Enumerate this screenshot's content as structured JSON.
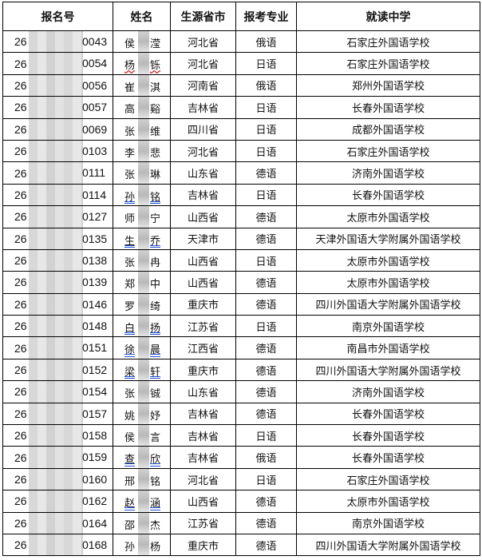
{
  "headers": [
    "报名号",
    "姓名",
    "生源省市",
    "报考专业",
    "就读中学"
  ],
  "rows": [
    {
      "id_prefix": "26",
      "id_suffix": "0043",
      "surname": "侯",
      "name_end": "滢",
      "province": "河北省",
      "major": "俄语",
      "school": "石家庄外国语学校",
      "underline": ""
    },
    {
      "id_prefix": "26",
      "id_suffix": "0054",
      "surname": "杨",
      "name_end": "铄",
      "province": "河北省",
      "major": "日语",
      "school": "石家庄外国语学校",
      "underline": "red"
    },
    {
      "id_prefix": "26",
      "id_suffix": "0056",
      "surname": "崔",
      "name_end": "淇",
      "province": "河南省",
      "major": "俄语",
      "school": "郑州外国语学校",
      "underline": ""
    },
    {
      "id_prefix": "26",
      "id_suffix": "0057",
      "surname": "高",
      "name_end": "谿",
      "province": "吉林省",
      "major": "日语",
      "school": "长春外国语学校",
      "underline": ""
    },
    {
      "id_prefix": "26",
      "id_suffix": "0069",
      "surname": "张",
      "name_end": "维",
      "province": "四川省",
      "major": "日语",
      "school": "成都外国语学校",
      "underline": ""
    },
    {
      "id_prefix": "26",
      "id_suffix": "0103",
      "surname": "李",
      "name_end": "悲",
      "province": "河北省",
      "major": "日语",
      "school": "石家庄外国语学校",
      "underline": ""
    },
    {
      "id_prefix": "26",
      "id_suffix": "0111",
      "surname": "张",
      "name_end": "琳",
      "province": "山东省",
      "major": "德语",
      "school": "济南外国语学校",
      "underline": ""
    },
    {
      "id_prefix": "26",
      "id_suffix": "0114",
      "surname": "孙",
      "name_end": "铭",
      "province": "吉林省",
      "major": "日语",
      "school": "长春外国语学校",
      "underline": "blue"
    },
    {
      "id_prefix": "26",
      "id_suffix": "0127",
      "surname": "师",
      "name_end": "宁",
      "province": "山西省",
      "major": "德语",
      "school": "太原市外国语学校",
      "underline": ""
    },
    {
      "id_prefix": "26",
      "id_suffix": "0135",
      "surname": "生",
      "name_end": "乔",
      "province": "天津市",
      "major": "德语",
      "school": "天津外国语大学附属外国语学校",
      "underline": "blue"
    },
    {
      "id_prefix": "26",
      "id_suffix": "0138",
      "surname": "张",
      "name_end": "冉",
      "province": "山西省",
      "major": "日语",
      "school": "太原市外国语学校",
      "underline": ""
    },
    {
      "id_prefix": "26",
      "id_suffix": "0139",
      "surname": "郑",
      "name_end": "中",
      "province": "山西省",
      "major": "德语",
      "school": "太原市外国语学校",
      "underline": ""
    },
    {
      "id_prefix": "26",
      "id_suffix": "0146",
      "surname": "罗",
      "name_end": "绮",
      "province": "重庆市",
      "major": "德语",
      "school": "四川外国语大学附属外国语学校",
      "underline": ""
    },
    {
      "id_prefix": "26",
      "id_suffix": "0148",
      "surname": "白",
      "name_end": "扬",
      "province": "江苏省",
      "major": "日语",
      "school": "南京外国语学校",
      "underline": "blue"
    },
    {
      "id_prefix": "26",
      "id_suffix": "0151",
      "surname": "徐",
      "name_end": "晨",
      "province": "江西省",
      "major": "德语",
      "school": "南昌市外国语学校",
      "underline": "blue"
    },
    {
      "id_prefix": "26",
      "id_suffix": "0152",
      "surname": "梁",
      "name_end": "轩",
      "province": "重庆市",
      "major": "德语",
      "school": "四川外国语大学附属外国语学校",
      "underline": "blue"
    },
    {
      "id_prefix": "26",
      "id_suffix": "0154",
      "surname": "张",
      "name_end": "铖",
      "province": "山东省",
      "major": "德语",
      "school": "济南外国语学校",
      "underline": ""
    },
    {
      "id_prefix": "26",
      "id_suffix": "0157",
      "surname": "姚",
      "name_end": "妤",
      "province": "吉林省",
      "major": "德语",
      "school": "长春外国语学校",
      "underline": ""
    },
    {
      "id_prefix": "26",
      "id_suffix": "0158",
      "surname": "侯",
      "name_end": "言",
      "province": "吉林省",
      "major": "日语",
      "school": "长春外国语学校",
      "underline": ""
    },
    {
      "id_prefix": "26",
      "id_suffix": "0159",
      "surname": "查",
      "name_end": "欣",
      "province": "吉林省",
      "major": "俄语",
      "school": "长春外国语学校",
      "underline": "blue"
    },
    {
      "id_prefix": "26",
      "id_suffix": "0160",
      "surname": "邢",
      "name_end": "铭",
      "province": "河北省",
      "major": "日语",
      "school": "石家庄外国语学校",
      "underline": ""
    },
    {
      "id_prefix": "26",
      "id_suffix": "0162",
      "surname": "赵",
      "name_end": "涵",
      "province": "山西省",
      "major": "德语",
      "school": "太原市外国语学校",
      "underline": "blue"
    },
    {
      "id_prefix": "26",
      "id_suffix": "0164",
      "surname": "邵",
      "name_end": "杰",
      "province": "江苏省",
      "major": "德语",
      "school": "南京外国语学校",
      "underline": ""
    },
    {
      "id_prefix": "26",
      "id_suffix": "0168",
      "surname": "孙",
      "name_end": "杨",
      "province": "重庆市",
      "major": "德语",
      "school": "四川外国语大学附属外国语学校",
      "underline": ""
    }
  ]
}
